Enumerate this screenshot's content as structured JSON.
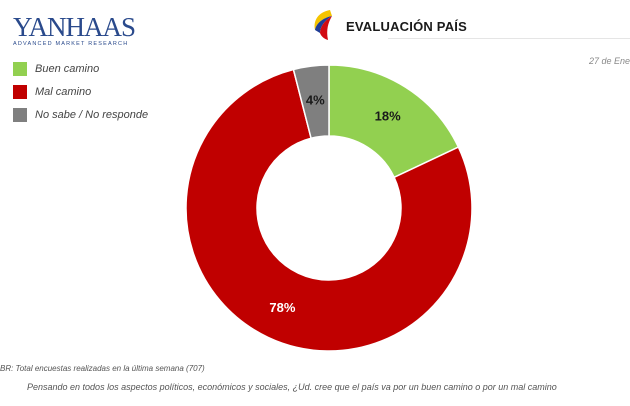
{
  "brand": {
    "name": "YANHAAS",
    "subtitle": "ADVANCED MARKET RESEARCH"
  },
  "header": {
    "title": "EVALUACIÓN PAÍS",
    "date": "27 de Ene"
  },
  "colors": {
    "buen_camino": "#92d050",
    "mal_camino": "#c00000",
    "no_sabe": "#7f7f7f",
    "brand": "#2a4a8c"
  },
  "chart_data": {
    "type": "pie",
    "donut": true,
    "categories": [
      "Buen camino",
      "Mal camino",
      "No sabe / No responde"
    ],
    "values": [
      18,
      78,
      4
    ],
    "data_labels": [
      "18%",
      "78%",
      "4%"
    ],
    "legend_position": "top-left"
  },
  "footer": {
    "base_note": "BR: Total encuestas realizadas en la última semana (707)",
    "question": "Pensando en todos los aspectos políticos, económicos y sociales, ¿Ud. cree que el país va por un buen camino o por un mal camino"
  }
}
